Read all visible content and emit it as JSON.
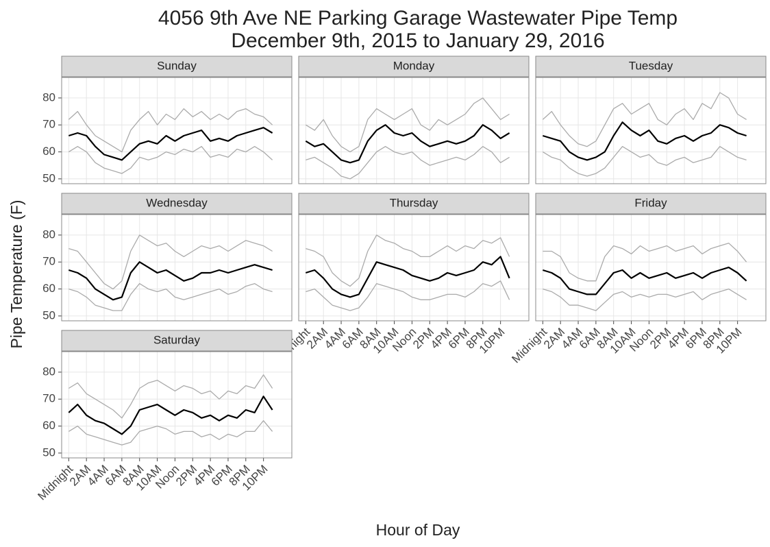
{
  "chart_data": {
    "type": "line",
    "title": "4056 9th Ave NE Parking Garage Wastewater Pipe Temp",
    "subtitle": "December 9th, 2015 to January 29, 2016",
    "x_label": "Hour of Day",
    "y_label": "Pipe Temperature (F)",
    "x": [
      0,
      1,
      2,
      3,
      4,
      5,
      6,
      7,
      8,
      9,
      10,
      11,
      12,
      13,
      14,
      15,
      16,
      17,
      18,
      19,
      20,
      21,
      22,
      23
    ],
    "xlim": [
      -0.8,
      25.2
    ],
    "xticks": [
      {
        "value": 0,
        "label": "Midnight"
      },
      {
        "value": 2,
        "label": "2AM"
      },
      {
        "value": 4,
        "label": "4AM"
      },
      {
        "value": 6,
        "label": "6AM"
      },
      {
        "value": 8,
        "label": "8AM"
      },
      {
        "value": 10,
        "label": "10AM"
      },
      {
        "value": 12,
        "label": "Noon"
      },
      {
        "value": 14,
        "label": "2PM"
      },
      {
        "value": 16,
        "label": "4PM"
      },
      {
        "value": 18,
        "label": "6PM"
      },
      {
        "value": 20,
        "label": "8PM"
      },
      {
        "value": 22,
        "label": "10PM"
      }
    ],
    "ylim": [
      48.2,
      87.6
    ],
    "yticks": [
      50,
      60,
      70,
      80
    ],
    "grid": true,
    "facets": [
      {
        "title": "Sunday",
        "series": [
          {
            "color": "#aaaaaa",
            "values": [
              72,
              75,
              70,
              66,
              64,
              62,
              60,
              68,
              72,
              75,
              70,
              74,
              72,
              76,
              73,
              75,
              72,
              74,
              72,
              75,
              76,
              74,
              73,
              70
            ]
          },
          {
            "color": "#aaaaaa",
            "values": [
              60,
              62,
              60,
              56,
              54,
              53,
              52,
              54,
              58,
              57,
              58,
              60,
              59,
              61,
              60,
              62,
              58,
              59,
              58,
              61,
              60,
              62,
              60,
              57
            ]
          },
          {
            "color": "#000000",
            "values": [
              66,
              67,
              66,
              62,
              59,
              58,
              57,
              60,
              63,
              64,
              63,
              66,
              64,
              66,
              67,
              68,
              64,
              65,
              64,
              66,
              67,
              68,
              69,
              67
            ]
          }
        ]
      },
      {
        "title": "Monday",
        "series": [
          {
            "color": "#aaaaaa",
            "values": [
              70,
              68,
              72,
              66,
              62,
              60,
              62,
              72,
              76,
              74,
              72,
              74,
              76,
              70,
              68,
              72,
              70,
              72,
              74,
              78,
              80,
              76,
              72,
              74
            ]
          },
          {
            "color": "#aaaaaa",
            "values": [
              57,
              58,
              56,
              54,
              51,
              50,
              52,
              56,
              60,
              62,
              60,
              59,
              60,
              57,
              55,
              56,
              57,
              58,
              57,
              59,
              62,
              60,
              56,
              58
            ]
          },
          {
            "color": "#000000",
            "values": [
              64,
              62,
              63,
              60,
              57,
              56,
              57,
              64,
              68,
              70,
              67,
              66,
              67,
              64,
              62,
              63,
              64,
              63,
              64,
              66,
              70,
              68,
              65,
              67
            ]
          }
        ]
      },
      {
        "title": "Tuesday",
        "series": [
          {
            "color": "#aaaaaa",
            "values": [
              72,
              75,
              70,
              66,
              63,
              62,
              64,
              70,
              76,
              78,
              74,
              76,
              78,
              72,
              70,
              74,
              76,
              72,
              78,
              76,
              82,
              80,
              74,
              72
            ]
          },
          {
            "color": "#aaaaaa",
            "values": [
              60,
              58,
              57,
              54,
              52,
              51,
              52,
              54,
              58,
              62,
              60,
              58,
              59,
              56,
              55,
              57,
              58,
              56,
              57,
              58,
              62,
              60,
              58,
              57
            ]
          },
          {
            "color": "#000000",
            "values": [
              66,
              65,
              64,
              60,
              58,
              57,
              58,
              60,
              66,
              71,
              68,
              66,
              68,
              64,
              63,
              65,
              66,
              64,
              66,
              67,
              70,
              69,
              67,
              66
            ]
          }
        ]
      },
      {
        "title": "Wednesday",
        "series": [
          {
            "color": "#aaaaaa",
            "values": [
              75,
              74,
              70,
              66,
              62,
              60,
              63,
              74,
              80,
              78,
              76,
              77,
              74,
              72,
              74,
              76,
              75,
              76,
              74,
              76,
              78,
              77,
              76,
              74
            ]
          },
          {
            "color": "#aaaaaa",
            "values": [
              60,
              59,
              57,
              54,
              53,
              52,
              52,
              58,
              62,
              60,
              59,
              60,
              57,
              56,
              57,
              58,
              59,
              60,
              58,
              59,
              61,
              62,
              60,
              59
            ]
          },
          {
            "color": "#000000",
            "values": [
              67,
              66,
              64,
              60,
              58,
              56,
              57,
              66,
              70,
              68,
              66,
              67,
              65,
              63,
              64,
              66,
              66,
              67,
              66,
              67,
              68,
              69,
              68,
              67
            ]
          }
        ]
      },
      {
        "title": "Thursday",
        "series": [
          {
            "color": "#aaaaaa",
            "values": [
              75,
              74,
              72,
              66,
              63,
              61,
              64,
              74,
              80,
              78,
              77,
              75,
              74,
              72,
              72,
              74,
              76,
              74,
              76,
              75,
              78,
              77,
              79,
              72
            ]
          },
          {
            "color": "#aaaaaa",
            "values": [
              59,
              60,
              57,
              54,
              53,
              52,
              53,
              57,
              62,
              61,
              60,
              59,
              57,
              56,
              56,
              57,
              58,
              58,
              57,
              59,
              62,
              61,
              63,
              56
            ]
          },
          {
            "color": "#000000",
            "values": [
              66,
              67,
              64,
              60,
              58,
              57,
              58,
              64,
              70,
              69,
              68,
              67,
              65,
              64,
              63,
              64,
              66,
              65,
              66,
              67,
              70,
              69,
              72,
              64
            ]
          }
        ]
      },
      {
        "title": "Friday",
        "series": [
          {
            "color": "#aaaaaa",
            "values": [
              74,
              74,
              72,
              66,
              64,
              63,
              63,
              72,
              76,
              75,
              73,
              76,
              74,
              75,
              76,
              74,
              75,
              76,
              73,
              75,
              76,
              77,
              74,
              70
            ]
          },
          {
            "color": "#aaaaaa",
            "values": [
              60,
              59,
              57,
              54,
              54,
              53,
              52,
              55,
              58,
              59,
              57,
              58,
              57,
              58,
              58,
              57,
              58,
              59,
              56,
              58,
              59,
              60,
              58,
              56
            ]
          },
          {
            "color": "#000000",
            "values": [
              67,
              66,
              64,
              60,
              59,
              58,
              58,
              62,
              66,
              67,
              64,
              66,
              64,
              65,
              66,
              64,
              65,
              66,
              64,
              66,
              67,
              68,
              66,
              63
            ]
          }
        ]
      },
      {
        "title": "Saturday",
        "series": [
          {
            "color": "#aaaaaa",
            "values": [
              74,
              76,
              72,
              70,
              68,
              66,
              63,
              68,
              74,
              76,
              77,
              75,
              73,
              75,
              74,
              72,
              73,
              70,
              73,
              72,
              75,
              74,
              79,
              74
            ]
          },
          {
            "color": "#aaaaaa",
            "values": [
              58,
              60,
              57,
              56,
              55,
              54,
              53,
              54,
              58,
              59,
              60,
              59,
              57,
              58,
              58,
              56,
              57,
              55,
              57,
              56,
              58,
              58,
              62,
              58
            ]
          },
          {
            "color": "#000000",
            "values": [
              65,
              68,
              64,
              62,
              61,
              59,
              57,
              60,
              66,
              67,
              68,
              66,
              64,
              66,
              65,
              63,
              64,
              62,
              64,
              63,
              66,
              65,
              71,
              66
            ]
          }
        ]
      }
    ]
  }
}
